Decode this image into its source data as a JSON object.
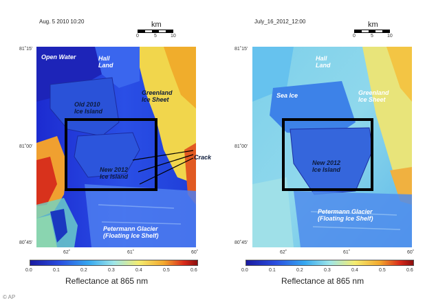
{
  "left": {
    "title": "Aug.  5  2010  10:20",
    "labels": {
      "open_water": "Open Water",
      "hall_land": "Hall\nLand",
      "greenland": "Greenland\nIce Sheet",
      "old_island": "Old 2010\nIce Island",
      "new_island": "New 2012\nIce Island",
      "crack": "Crack",
      "petermann": "Petermann Glacier\n(Floating Ice Shelf)"
    },
    "lat_ticks": [
      "81˚15'",
      "81˚00'",
      "80˚45'"
    ],
    "lon_ticks": [
      "62˚",
      "61˚",
      "60˚"
    ]
  },
  "right": {
    "title": "July_16_2012_12:00",
    "labels": {
      "hall_land": "Hall\nLand",
      "sea_ice": "Sea Ice",
      "greenland": "Greenland\nIce Sheet",
      "new_island": "New 2012\nIce Island",
      "petermann": "Petermann Glacier\n(Floating Ice Shelf)"
    },
    "lat_ticks": [
      "81˚15'",
      "81˚00'",
      "80˚45'"
    ],
    "lon_ticks": [
      "62˚",
      "61˚",
      "60˚"
    ]
  },
  "scale": {
    "unit": "km",
    "ticks": [
      "0",
      "5",
      "10"
    ]
  },
  "colorbar": {
    "ticks": [
      "0.0",
      "0.1",
      "0.2",
      "0.3",
      "0.4",
      "0.5",
      "0.6"
    ],
    "title": "Reflectance at 865 nm"
  },
  "credit": "© AP"
}
